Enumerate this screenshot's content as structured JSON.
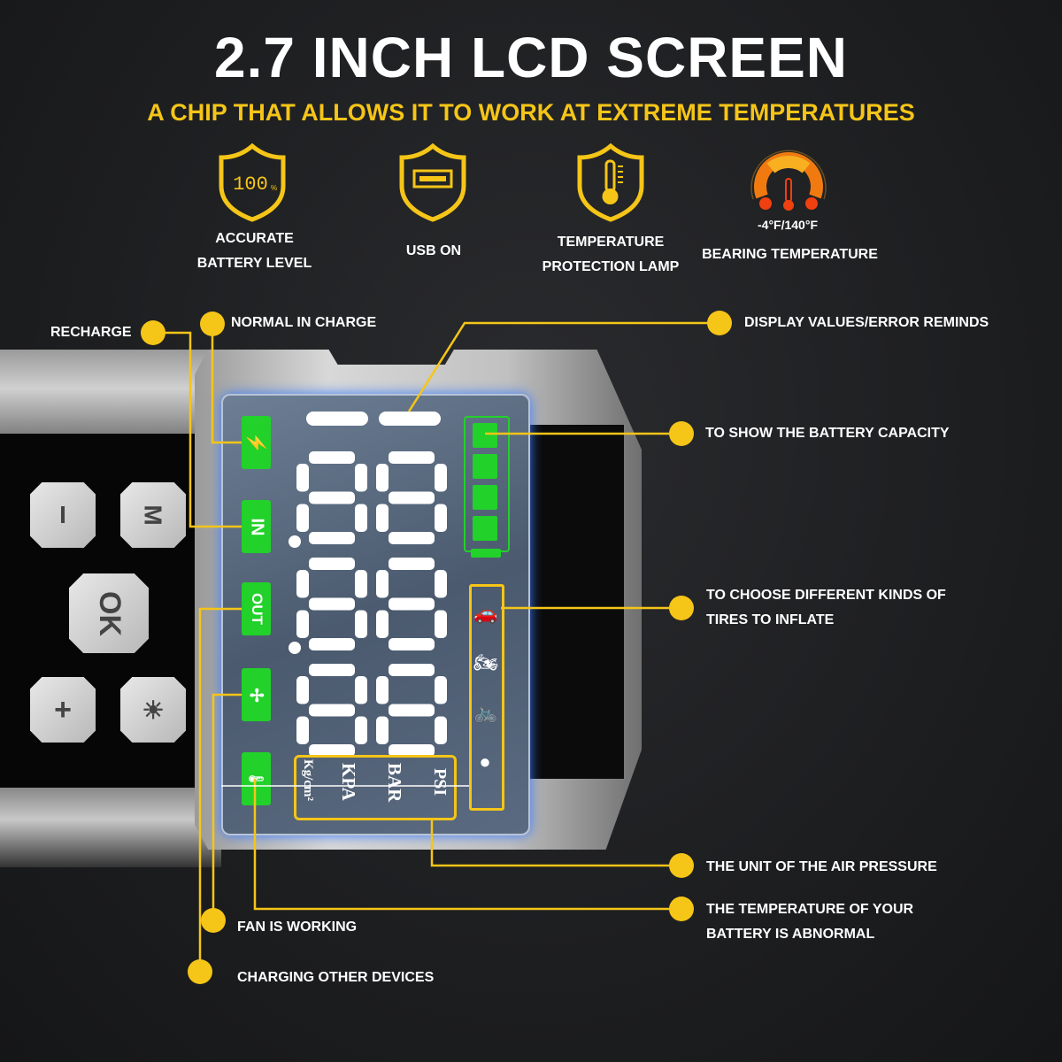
{
  "header": {
    "title": "2.7 INCH LCD SCREEN",
    "subtitle": "A CHIP THAT ALLOWS IT TO WORK AT EXTREME TEMPERATURES"
  },
  "features": [
    {
      "icon": "battery-percent-shield-icon",
      "badge": "100",
      "badge_unit": "%",
      "line1": "ACCURATE",
      "line2": "BATTERY LEVEL"
    },
    {
      "icon": "usb-shield-icon",
      "line1": "USB ON"
    },
    {
      "icon": "thermometer-shield-icon",
      "line1": "TEMPERATURE",
      "line2": "PROTECTION LAMP"
    },
    {
      "icon": "temperature-gauge-icon",
      "range": "-4°F/140°F",
      "line1": "BEARING TEMPERATURE"
    }
  ],
  "device": {
    "buttons": [
      {
        "label": "I"
      },
      {
        "label": "M"
      },
      {
        "label": "OK"
      },
      {
        "label": "+"
      },
      {
        "label": "☀"
      }
    ],
    "indicators": [
      {
        "icon": "bolt-icon",
        "label": "⚡"
      },
      {
        "icon": "in-icon",
        "label": "IN"
      },
      {
        "icon": "out-icon",
        "label": "OUT"
      },
      {
        "icon": "fan-icon",
        "label": "✢"
      },
      {
        "icon": "thermometer-icon",
        "label": "🌡"
      }
    ],
    "units": [
      "PSI",
      "BAR",
      "KPA",
      "Kg/cm²"
    ],
    "battery_bars_lit": 4,
    "tire_modes": [
      "car-icon",
      "motorcycle-icon",
      "bicycle-icon",
      "ball-icon"
    ]
  },
  "callouts": {
    "recharge": "RECHARGE",
    "normal_in_charge": "NORMAL IN CHARGE",
    "display_values": "DISPLAY VALUES/ERROR REMINDS",
    "battery_capacity": "TO SHOW THE BATTERY CAPACITY",
    "tires_line1": "TO CHOOSE DIFFERENT KINDS OF",
    "tires_line2": "TIRES TO INFLATE",
    "unit": "THE UNIT OF THE AIR PRESSURE",
    "temp_line1": "THE TEMPERATURE OF YOUR",
    "temp_line2": "BATTERY IS ABNORMAL",
    "fan": "FAN IS WORKING",
    "charging": "CHARGING OTHER DEVICES"
  },
  "colors": {
    "accent": "#f5c518",
    "indicator_green": "#22d12a",
    "gauge_orange": "#f07a10"
  }
}
